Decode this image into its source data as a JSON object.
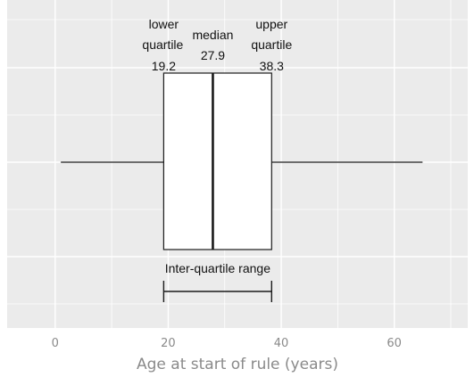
{
  "chart_data": {
    "type": "boxplot",
    "xlabel": "Age at start of rule (years)",
    "xlim": [
      -8.5,
      73
    ],
    "x_ticks": [
      0,
      20,
      40,
      60
    ],
    "x_tick_labels": [
      "0",
      "20",
      "40",
      "60"
    ],
    "grid": true,
    "box": {
      "whisker_low": 1,
      "q1": 19.2,
      "median": 27.9,
      "q3": 38.3,
      "whisker_high": 65
    },
    "annotations": {
      "q1": {
        "line1": "lower",
        "line2": "quartile",
        "value": "19.2"
      },
      "median": {
        "line1": "median",
        "value": "27.9"
      },
      "q3": {
        "line1": "upper",
        "line2": "quartile",
        "value": "38.3"
      },
      "iqr": {
        "label": "Inter-quartile range"
      }
    },
    "colors": {
      "panel": "#ebebeb",
      "grid": "#ffffff",
      "box_fill": "#ffffff",
      "line": "#1a1a1a",
      "tick_text": "#8a8a8a"
    }
  }
}
